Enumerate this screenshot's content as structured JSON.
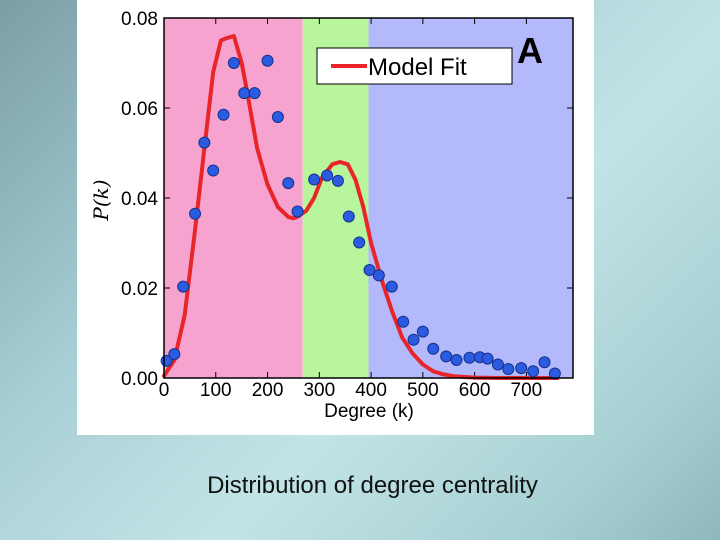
{
  "caption": "Distribution of degree centrality",
  "chart_data": {
    "type": "scatter",
    "title": "",
    "panel_label": "A",
    "xlabel": "Degree (k)",
    "ylabel": "P(k)",
    "xlim": [
      0,
      790
    ],
    "ylim": [
      0,
      0.08
    ],
    "xticks": [
      0,
      100,
      200,
      300,
      400,
      500,
      600,
      700
    ],
    "yticks": [
      0.0,
      0.02,
      0.04,
      0.06,
      0.08
    ],
    "ytick_labels": [
      "0.00",
      "0.02",
      "0.04",
      "0.06",
      "0.08"
    ],
    "regions": [
      {
        "from": 0,
        "to": 268,
        "color": "#f7a3cf"
      },
      {
        "from": 268,
        "to": 395,
        "color": "#b8f59c"
      },
      {
        "from": 395,
        "to": 790,
        "color": "#b4b9fb"
      }
    ],
    "legend": {
      "label": "Model Fit",
      "placement": "top-right"
    },
    "series": [
      {
        "name": "Data",
        "kind": "scatter",
        "color": "#2b5be0",
        "x": [
          5,
          20,
          37,
          60,
          78,
          95,
          115,
          135,
          155,
          175,
          200,
          220,
          240,
          258,
          290,
          315,
          336,
          357,
          377,
          397,
          415,
          440,
          462,
          482,
          500,
          520,
          545,
          565,
          590,
          610,
          625,
          645,
          665,
          690,
          713,
          735,
          755
        ],
        "y": [
          0.0038,
          0.0053,
          0.0203,
          0.0365,
          0.0523,
          0.0461,
          0.0585,
          0.07,
          0.0633,
          0.0633,
          0.0705,
          0.058,
          0.0433,
          0.037,
          0.0441,
          0.045,
          0.0438,
          0.0359,
          0.0301,
          0.024,
          0.0228,
          0.0203,
          0.0125,
          0.0085,
          0.0103,
          0.0065,
          0.0048,
          0.004,
          0.0045,
          0.0046,
          0.0043,
          0.003,
          0.002,
          0.0022,
          0.0015,
          0.0035,
          0.001
        ]
      },
      {
        "name": "Model Fit",
        "kind": "line",
        "color": "#e8262a",
        "x": [
          0,
          20,
          40,
          60,
          80,
          95,
          110,
          120,
          135,
          150,
          160,
          180,
          200,
          220,
          240,
          250,
          260,
          275,
          290,
          305,
          325,
          340,
          355,
          370,
          385,
          400,
          420,
          440,
          460,
          480,
          500,
          520,
          540,
          560,
          600,
          650,
          700,
          760
        ],
        "y": [
          0.0005,
          0.004,
          0.014,
          0.033,
          0.053,
          0.068,
          0.075,
          0.0755,
          0.076,
          0.07,
          0.064,
          0.051,
          0.043,
          0.038,
          0.0358,
          0.0355,
          0.036,
          0.0372,
          0.04,
          0.0445,
          0.0475,
          0.048,
          0.0475,
          0.044,
          0.038,
          0.03,
          0.022,
          0.015,
          0.009,
          0.0055,
          0.003,
          0.0015,
          0.0008,
          0.0004,
          0.0001,
          0.0,
          0.0,
          0.0
        ]
      }
    ]
  }
}
